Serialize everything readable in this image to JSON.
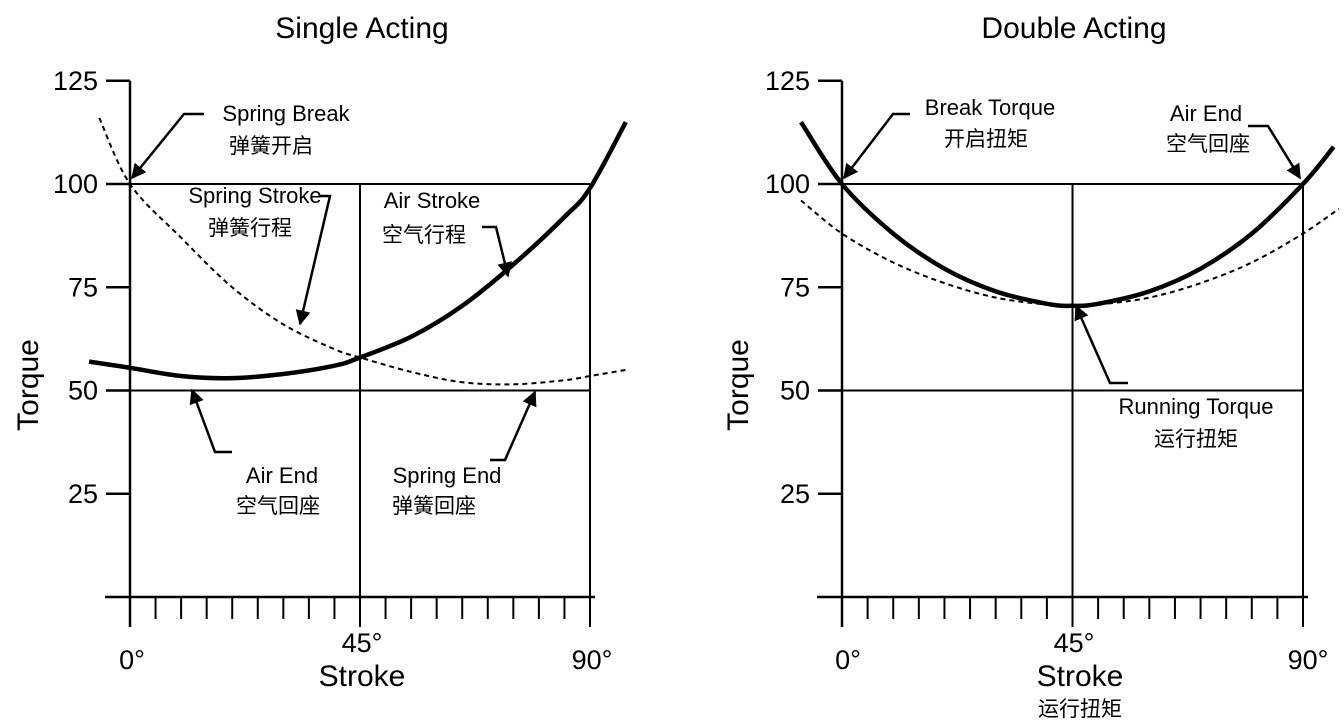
{
  "chart_data": [
    {
      "type": "line",
      "title": "Single Acting",
      "xlabel": "Stroke",
      "ylabel": "Torque",
      "xlim": [
        0,
        90
      ],
      "ylim": [
        0,
        125
      ],
      "x_tick_labels": [
        "0°",
        "45°",
        "90°"
      ],
      "y_ticks": [
        25,
        50,
        75,
        100,
        125
      ],
      "y_tick_labels": [
        "25",
        "50",
        "75",
        "100",
        "125"
      ],
      "grid_lines": {
        "horizontal": [
          50,
          100
        ],
        "vertical": [
          45,
          90
        ]
      },
      "series": [
        {
          "style": "solid-thick",
          "x": [
            -8,
            0,
            10,
            20,
            30,
            40,
            45,
            55,
            65,
            75,
            85,
            90,
            97
          ],
          "y": [
            57,
            55.5,
            53.5,
            53,
            54,
            56,
            58,
            63,
            70.5,
            80.5,
            92,
            99,
            115
          ]
        },
        {
          "style": "dashed",
          "x": [
            -6,
            0,
            10,
            20,
            30,
            40,
            45,
            55,
            65,
            75,
            85,
            90,
            97
          ],
          "y": [
            116,
            100,
            87,
            75,
            66,
            60,
            58,
            54.5,
            52,
            51.5,
            52.5,
            53.5,
            55
          ]
        }
      ],
      "annotations": [
        {
          "en": "Spring Break",
          "cn": "弹簧开启"
        },
        {
          "en": "Spring Stroke",
          "cn": "弹簧行程"
        },
        {
          "en": "Air Stroke",
          "cn": "空气行程"
        },
        {
          "en": "Air End",
          "cn": "空气回座"
        },
        {
          "en": "Spring End",
          "cn": "弹簧回座"
        }
      ]
    },
    {
      "type": "line",
      "title": "Double Acting",
      "xlabel": "Stroke",
      "xlabel_cn": "运行扭矩",
      "ylabel": "Torque",
      "xlim": [
        0,
        90
      ],
      "ylim": [
        0,
        125
      ],
      "x_tick_labels": [
        "0°",
        "45°",
        "90°"
      ],
      "y_ticks": [
        25,
        50,
        75,
        100,
        125
      ],
      "y_tick_labels": [
        "25",
        "50",
        "75",
        "100",
        "125"
      ],
      "grid_lines": {
        "horizontal": [
          50,
          100
        ],
        "vertical": [
          45,
          90
        ]
      },
      "series": [
        {
          "style": "solid-thick",
          "x": [
            -8,
            0,
            10,
            20,
            30,
            40,
            45,
            50,
            60,
            70,
            80,
            90,
            96
          ],
          "y": [
            115,
            100,
            88,
            79.5,
            74,
            71,
            70.5,
            71,
            74,
            79.5,
            88,
            100,
            109
          ]
        },
        {
          "style": "dashed",
          "x": [
            -8,
            0,
            10,
            20,
            30,
            40,
            45,
            50,
            60,
            70,
            80,
            90,
            97
          ],
          "y": [
            96,
            88,
            81,
            76,
            72.5,
            70.8,
            70.5,
            70.8,
            72.5,
            76,
            81,
            88,
            94
          ]
        }
      ],
      "annotations": [
        {
          "en": "Break Torque",
          "cn": "开启扭矩"
        },
        {
          "en": "Air End",
          "cn": "空气回座"
        },
        {
          "en": "Running Torque",
          "cn": "运行扭矩"
        }
      ]
    }
  ]
}
